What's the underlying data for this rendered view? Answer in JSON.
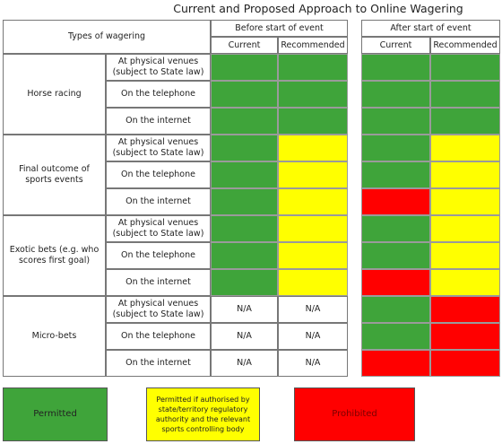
{
  "title": "Current and Proposed Approach to Online Wagering",
  "header": {
    "types": "Types of wagering",
    "periods": [
      {
        "name": "Before start of event",
        "columns": [
          "Current",
          "Recommended"
        ]
      },
      {
        "name": "After start of event",
        "columns": [
          "Current",
          "Recommended"
        ]
      }
    ]
  },
  "groups": [
    {
      "name": "Horse racing",
      "rows": [
        {
          "channel": "At physical venues\n(subject to State law)",
          "cells": [
            0,
            0,
            0,
            0
          ]
        },
        {
          "channel": "On the telephone",
          "cells": [
            0,
            0,
            0,
            0
          ]
        },
        {
          "channel": "On the internet",
          "cells": [
            0,
            0,
            0,
            0
          ]
        }
      ]
    },
    {
      "name": "Final outcome of sports events",
      "rows": [
        {
          "channel": "At physical venues\n(subject to State law)",
          "cells": [
            0,
            1,
            0,
            1
          ]
        },
        {
          "channel": "On the telephone",
          "cells": [
            0,
            1,
            0,
            1
          ]
        },
        {
          "channel": "On the internet",
          "cells": [
            0,
            1,
            2,
            1
          ]
        }
      ]
    },
    {
      "name": "Exotic bets (e.g. who scores first goal)",
      "rows": [
        {
          "channel": "At physical venues\n(subject to State law)",
          "cells": [
            0,
            1,
            0,
            1
          ]
        },
        {
          "channel": "On the telephone",
          "cells": [
            0,
            1,
            0,
            1
          ]
        },
        {
          "channel": "On the internet",
          "cells": [
            0,
            1,
            2,
            1
          ]
        }
      ]
    },
    {
      "name": "Micro-bets",
      "rows": [
        {
          "channel": "At physical venues\n(subject to State law)",
          "cells": [
            "N/A",
            "N/A",
            0,
            2
          ]
        },
        {
          "channel": "On the telephone",
          "cells": [
            "N/A",
            "N/A",
            0,
            2
          ]
        },
        {
          "channel": "On the internet",
          "cells": [
            "N/A",
            "N/A",
            2,
            2
          ]
        }
      ]
    }
  ],
  "legend": [
    {
      "label": "Permitted",
      "color": "#3fa43a"
    },
    {
      "label": "Permitted if authorised by\nstate/territory regulatory\nauthority and the relevant\nsports controlling body",
      "color": "#ffff00"
    },
    {
      "label": "Prohibited",
      "color": "#ff0000"
    }
  ]
}
